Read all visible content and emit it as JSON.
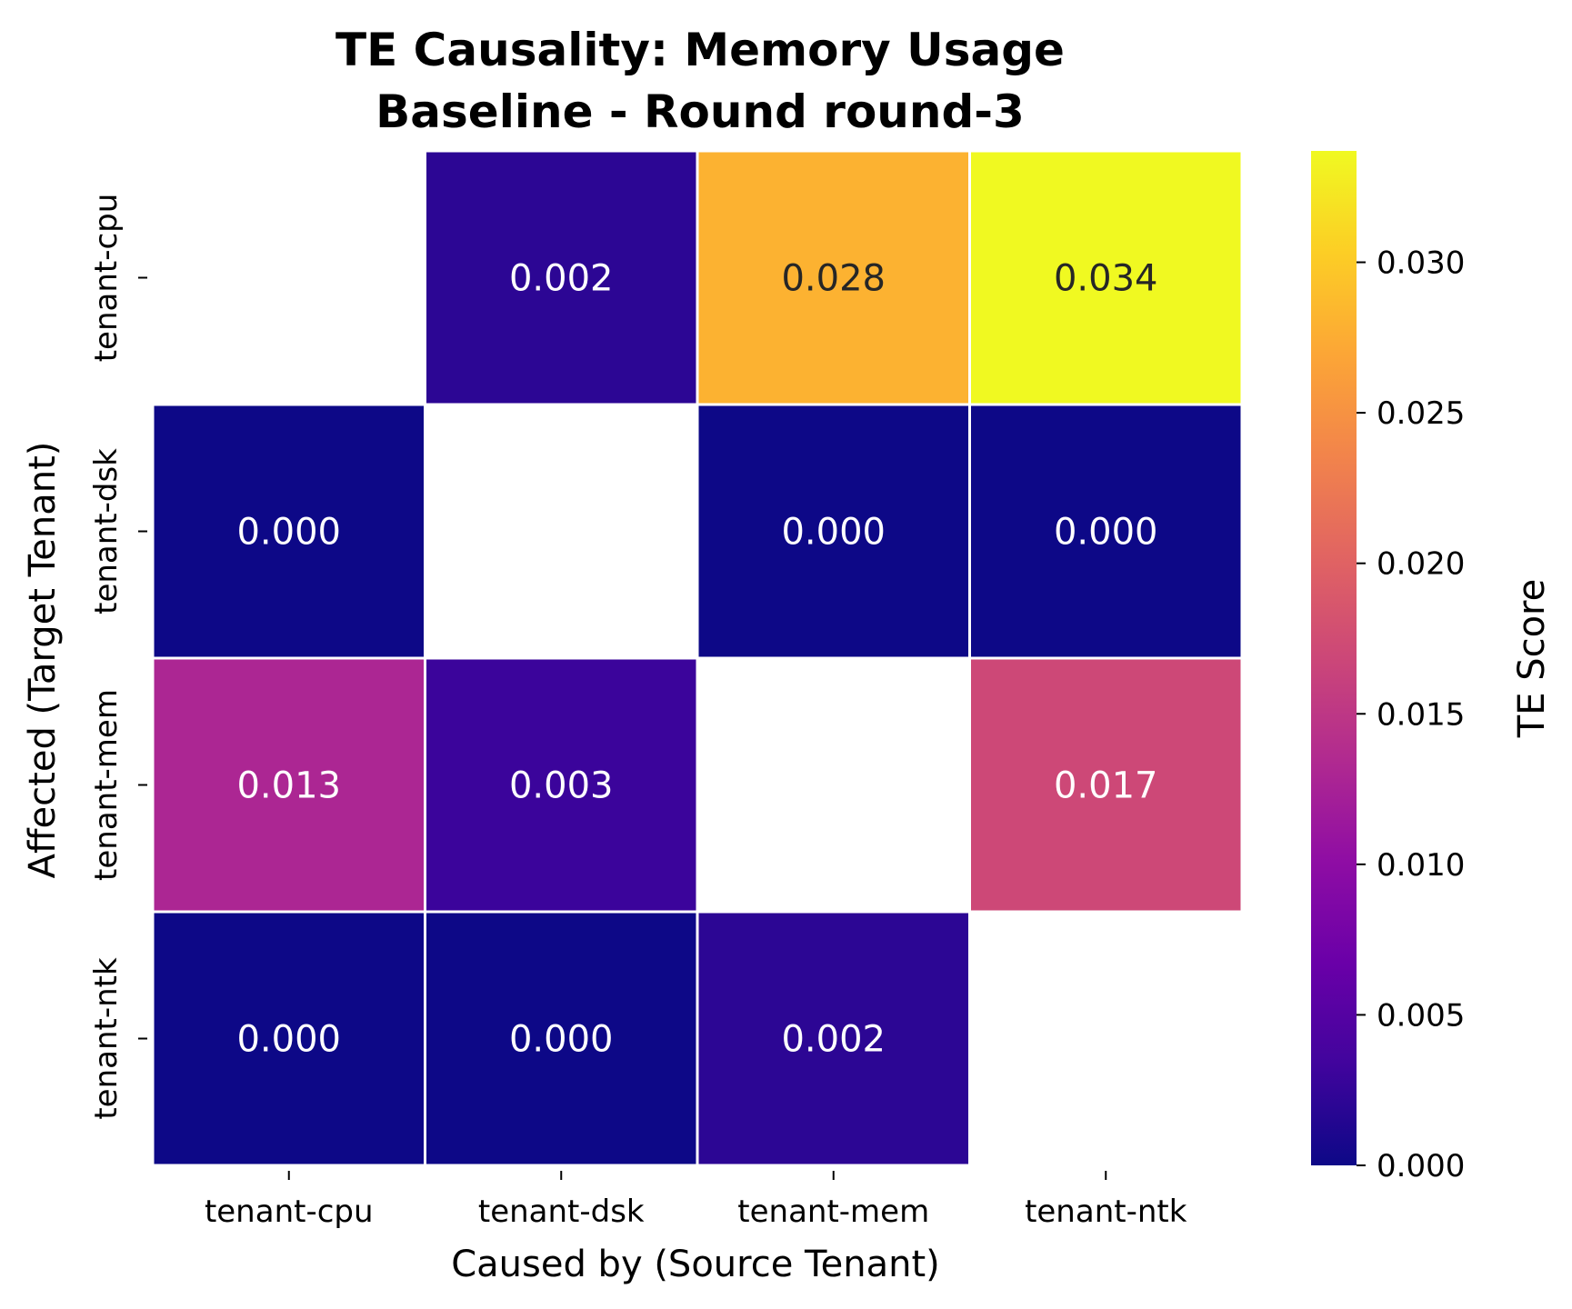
{
  "chart_data": {
    "type": "heatmap",
    "title": "TE Causality: Memory Usage\nBaseline - Round round-3",
    "xlabel": "Caused by (Source Tenant)",
    "ylabel": "Affected (Target Tenant)",
    "colorbar_label": "TE Score",
    "x_categories": [
      "tenant-cpu",
      "tenant-dsk",
      "tenant-mem",
      "tenant-ntk"
    ],
    "y_categories": [
      "tenant-cpu",
      "tenant-dsk",
      "tenant-mem",
      "tenant-ntk"
    ],
    "values": [
      [
        null,
        0.002,
        0.028,
        0.034
      ],
      [
        0.0,
        null,
        0.0,
        0.0
      ],
      [
        0.013,
        0.003,
        null,
        0.017
      ],
      [
        0.0,
        0.0,
        0.002,
        null
      ]
    ],
    "value_labels": [
      [
        null,
        "0.002",
        "0.028",
        "0.034"
      ],
      [
        "0.000",
        null,
        "0.000",
        "0.000"
      ],
      [
        "0.013",
        "0.003",
        null,
        "0.017"
      ],
      [
        "0.000",
        "0.000",
        "0.002",
        null
      ]
    ],
    "colorscale": "plasma",
    "vmin": 0.0,
    "vmax": 0.0337,
    "colorbar_ticks": [
      0.0,
      0.005,
      0.01,
      0.015,
      0.02,
      0.025,
      0.03
    ],
    "colorbar_tick_labels": [
      "0.000",
      "0.005",
      "0.010",
      "0.015",
      "0.020",
      "0.025",
      "0.030"
    ],
    "dark_text_color": "#262626",
    "light_text_color": "#ffffff"
  }
}
